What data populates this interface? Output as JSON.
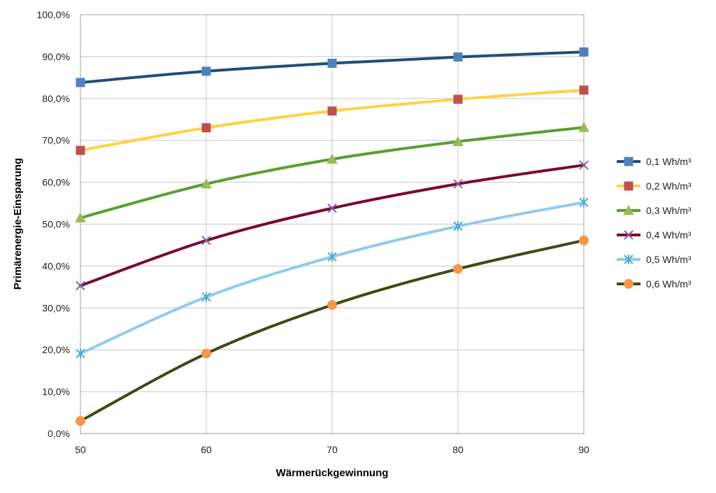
{
  "chart_data": {
    "type": "line",
    "title": "",
    "xlabel": "Wärmerückgewinnung",
    "ylabel": "Primärenergie-Einsparung",
    "x": [
      50,
      60,
      70,
      80,
      90
    ],
    "xticks": [
      "50",
      "60",
      "70",
      "80",
      "90"
    ],
    "yticks": [
      "0,0%",
      "10,0%",
      "20,0%",
      "30,0%",
      "40,0%",
      "50,0%",
      "60,0%",
      "70,0%",
      "80,0%",
      "90,0%",
      "100,0%"
    ],
    "xlim": [
      50,
      90
    ],
    "ylim": [
      0,
      100
    ],
    "grid": true,
    "legend_position": "right",
    "series": [
      {
        "name": "0,1 Wh/m³",
        "color": "#1f4e79",
        "marker": "square",
        "marker_color": "#4f81bd",
        "values": [
          83.8,
          86.5,
          88.4,
          89.9,
          91.1
        ]
      },
      {
        "name": "0,2 Wh/m³",
        "color": "#ffd23f",
        "marker": "square",
        "marker_color": "#c0504d",
        "values": [
          67.6,
          73.0,
          77.0,
          79.8,
          82.0
        ]
      },
      {
        "name": "0,3 Wh/m³",
        "color": "#5a9e2f",
        "marker": "triangle",
        "marker_color": "#9bbb59",
        "values": [
          51.5,
          59.6,
          65.5,
          69.7,
          73.1
        ]
      },
      {
        "name": "0,4 Wh/m³",
        "color": "#7b0a2a",
        "marker": "x",
        "marker_color": "#8064a2",
        "values": [
          35.3,
          46.1,
          53.8,
          59.6,
          64.1
        ]
      },
      {
        "name": "0,5 Wh/m³",
        "color": "#8ecbf0",
        "marker": "star",
        "marker_color": "#4bacc6",
        "values": [
          19.1,
          32.6,
          42.2,
          49.5,
          55.2
        ]
      },
      {
        "name": "0,6 Wh/m³",
        "color": "#3d4a12",
        "marker": "circle",
        "marker_color": "#f79646",
        "values": [
          3.0,
          19.1,
          30.7,
          39.3,
          46.1
        ]
      }
    ]
  }
}
